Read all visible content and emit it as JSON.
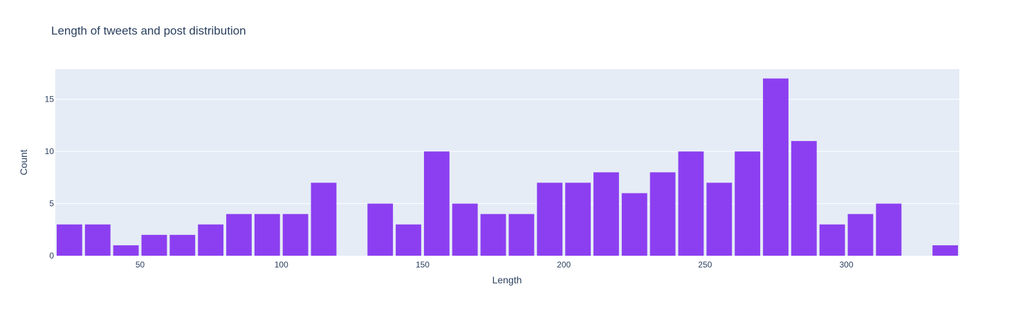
{
  "chart_data": {
    "type": "bar",
    "title": "Length of tweets and post distribution",
    "xlabel": "Length",
    "ylabel": "Count",
    "x": [
      25,
      35,
      45,
      55,
      65,
      75,
      85,
      95,
      105,
      115,
      125,
      135,
      145,
      155,
      165,
      175,
      185,
      195,
      205,
      215,
      225,
      235,
      245,
      255,
      265,
      275,
      285,
      295,
      305,
      315,
      325,
      335
    ],
    "values": [
      3,
      3,
      1,
      2,
      2,
      3,
      4,
      4,
      4,
      7,
      0,
      5,
      3,
      10,
      5,
      4,
      4,
      7,
      7,
      8,
      6,
      8,
      10,
      7,
      10,
      17,
      11,
      3,
      4,
      5,
      0,
      1
    ],
    "bin_width": 10,
    "xlim": [
      20,
      340
    ],
    "ylim": [
      0,
      17.9
    ],
    "xticks": [
      50,
      100,
      150,
      200,
      250,
      300
    ],
    "yticks": [
      0,
      5,
      10,
      15
    ],
    "grid": true,
    "colors": {
      "bar": "#8c3ff0",
      "plot_bg": "#e5ecf6",
      "grid": "#ffffff",
      "text": "#2a3f5f"
    }
  }
}
